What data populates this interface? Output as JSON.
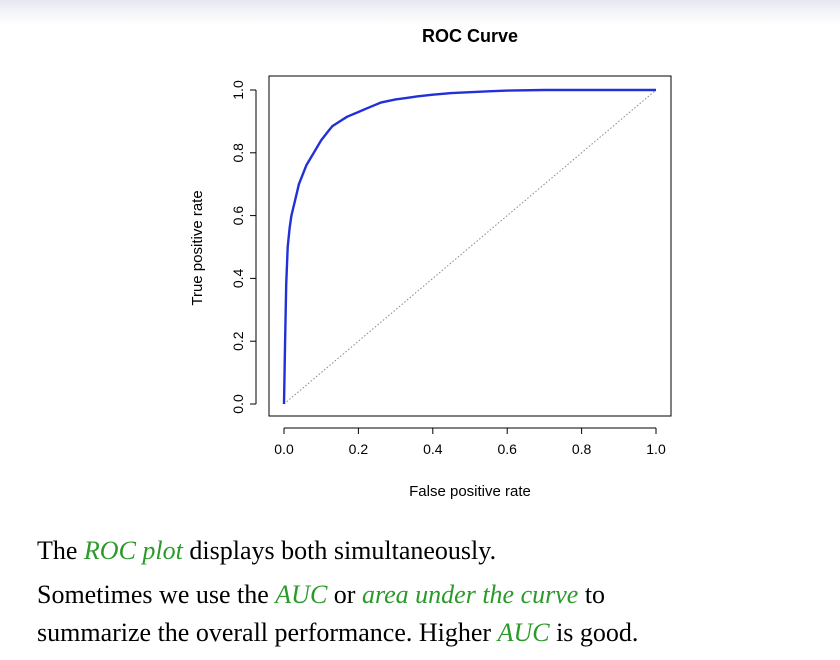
{
  "chart_data": {
    "type": "line",
    "title": "ROC Curve",
    "xlabel": "False positive rate",
    "ylabel": "True positive rate",
    "xlim": [
      0,
      1
    ],
    "ylim": [
      0,
      1
    ],
    "x_ticks": [
      "0.0",
      "0.2",
      "0.4",
      "0.6",
      "0.8",
      "1.0"
    ],
    "y_ticks": [
      "0.0",
      "0.2",
      "0.4",
      "0.6",
      "0.8",
      "1.0"
    ],
    "grid": false,
    "colors": {
      "curve": "#2230d8",
      "diagonal": "#888888"
    },
    "series": [
      {
        "x": [
          0.0,
          0.003,
          0.006,
          0.01,
          0.015,
          0.02,
          0.03,
          0.04,
          0.05,
          0.06,
          0.07,
          0.08,
          0.09,
          0.1,
          0.11,
          0.12,
          0.13,
          0.15,
          0.17,
          0.2,
          0.22,
          0.24,
          0.26,
          0.3,
          0.33,
          0.36,
          0.4,
          0.45,
          0.5,
          0.55,
          0.6,
          0.7,
          0.8,
          0.9,
          1.0
        ],
        "y": [
          0.0,
          0.2,
          0.38,
          0.5,
          0.56,
          0.6,
          0.65,
          0.7,
          0.73,
          0.76,
          0.78,
          0.8,
          0.82,
          0.84,
          0.855,
          0.87,
          0.885,
          0.9,
          0.915,
          0.93,
          0.94,
          0.95,
          0.96,
          0.97,
          0.975,
          0.98,
          0.985,
          0.99,
          0.993,
          0.996,
          0.998,
          1.0,
          1.0,
          1.0,
          1.0
        ]
      }
    ],
    "reference_line": {
      "x": [
        0,
        1
      ],
      "y": [
        0,
        1
      ],
      "style": "dotted"
    }
  },
  "text": {
    "line1": {
      "before": "The ",
      "hl": "ROC plot",
      "after": " displays both simultaneously."
    },
    "line2": {
      "before": "Sometimes we use the ",
      "hl1": "AUC",
      "mid": " or ",
      "hl2": "area under the curve",
      "after": " to"
    },
    "line3": {
      "before": "summarize the overall performance. Higher ",
      "hl": "AUC",
      "after": " is good."
    }
  }
}
